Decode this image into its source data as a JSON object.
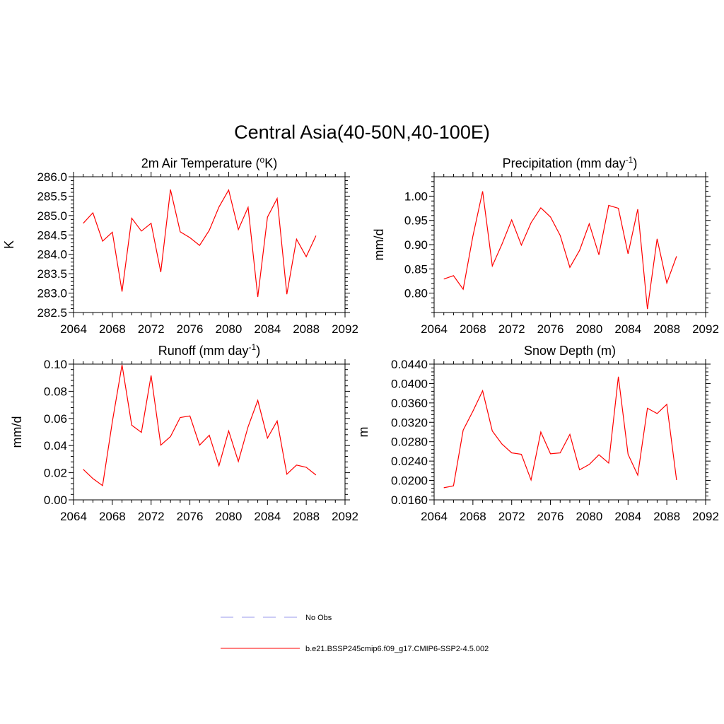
{
  "figure": {
    "title": "Central Asia(40-50N,40-100E)"
  },
  "legend": {
    "entries": [
      {
        "label": "No Obs",
        "color": "#9999ee",
        "style": "dashed"
      },
      {
        "label": "b.e21.BSSP245cmip6.f09_g17.CMIP6-SSP2-4.5.002",
        "color": "#ff0000",
        "style": "solid"
      }
    ]
  },
  "chart_data": [
    {
      "type": "line",
      "title_main": "2m Air Temperature (",
      "title_sup_prefix": "o",
      "title_rest": "K)",
      "ylabel": "K",
      "xlim": [
        2064,
        2092
      ],
      "ylim": [
        282.5,
        286.0
      ],
      "xticks": [
        2064,
        2068,
        2072,
        2076,
        2080,
        2084,
        2088,
        2092
      ],
      "yticks": [
        "282.5",
        "283.0",
        "283.5",
        "284.0",
        "284.5",
        "285.0",
        "285.5",
        "286.0"
      ],
      "color": "#ff0000",
      "series": [
        {
          "x": [
            2065,
            2066,
            2067,
            2068,
            2069,
            2070,
            2071,
            2072,
            2073,
            2074,
            2075,
            2076,
            2077,
            2078,
            2079,
            2080,
            2081,
            2082,
            2083,
            2084,
            2085,
            2086,
            2087,
            2088,
            2089
          ],
          "y": [
            284.8,
            285.07,
            284.34,
            284.57,
            283.04,
            284.93,
            284.6,
            284.8,
            283.54,
            285.67,
            284.58,
            284.43,
            284.23,
            284.62,
            285.22,
            285.66,
            284.64,
            285.21,
            282.9,
            284.96,
            285.44,
            282.97,
            284.39,
            283.94,
            284.48
          ]
        }
      ]
    },
    {
      "type": "line",
      "title_main": "Precipitation (mm day",
      "title_sup": "-1",
      "title_rest": ")",
      "ylabel": "mm/d",
      "xlim": [
        2064,
        2092
      ],
      "ylim": [
        0.76,
        1.04
      ],
      "xticks": [
        2064,
        2068,
        2072,
        2076,
        2080,
        2084,
        2088,
        2092
      ],
      "yticks": [
        "0.80",
        "0.85",
        "0.90",
        "0.95",
        "1.00"
      ],
      "color": "#ff0000",
      "series": [
        {
          "x": [
            2065,
            2066,
            2067,
            2068,
            2069,
            2070,
            2071,
            2072,
            2073,
            2074,
            2075,
            2076,
            2077,
            2078,
            2079,
            2080,
            2081,
            2082,
            2083,
            2084,
            2085,
            2086,
            2087,
            2088,
            2089
          ],
          "y": [
            0.829,
            0.836,
            0.808,
            0.918,
            1.01,
            0.856,
            0.901,
            0.951,
            0.899,
            0.945,
            0.976,
            0.957,
            0.919,
            0.853,
            0.888,
            0.943,
            0.879,
            0.981,
            0.975,
            0.881,
            0.973,
            0.767,
            0.912,
            0.821,
            0.876
          ]
        }
      ]
    },
    {
      "type": "line",
      "title_main": "Runoff (mm day",
      "title_sup": "-1",
      "title_rest": ")",
      "ylabel": "mm/d",
      "xlim": [
        2064,
        2092
      ],
      "ylim": [
        0.0,
        0.1
      ],
      "xticks": [
        2064,
        2068,
        2072,
        2076,
        2080,
        2084,
        2088,
        2092
      ],
      "yticks": [
        "0.00",
        "0.02",
        "0.04",
        "0.06",
        "0.08",
        "0.10"
      ],
      "color": "#ff0000",
      "series": [
        {
          "x": [
            2065,
            2066,
            2067,
            2068,
            2069,
            2070,
            2071,
            2072,
            2073,
            2074,
            2075,
            2076,
            2077,
            2078,
            2079,
            2080,
            2081,
            2082,
            2083,
            2084,
            2085,
            2086,
            2087,
            2088,
            2089
          ],
          "y": [
            0.0225,
            0.0157,
            0.0105,
            0.0576,
            0.0995,
            0.055,
            0.0497,
            0.0916,
            0.0403,
            0.0466,
            0.0607,
            0.0618,
            0.0403,
            0.0476,
            0.0251,
            0.0508,
            0.0283,
            0.0539,
            0.0733,
            0.0455,
            0.0581,
            0.0189,
            0.0256,
            0.024,
            0.0183
          ]
        }
      ]
    },
    {
      "type": "line",
      "title_main": "Snow Depth (m)",
      "ylabel": "m",
      "xlim": [
        2064,
        2092
      ],
      "ylim": [
        0.016,
        0.044
      ],
      "xticks": [
        2064,
        2068,
        2072,
        2076,
        2080,
        2084,
        2088,
        2092
      ],
      "yticks": [
        "0.0160",
        "0.0200",
        "0.0240",
        "0.0280",
        "0.0320",
        "0.0360",
        "0.0400",
        "0.0440"
      ],
      "color": "#ff0000",
      "series": [
        {
          "x": [
            2065,
            2066,
            2067,
            2068,
            2069,
            2070,
            2071,
            2072,
            2073,
            2074,
            2075,
            2076,
            2077,
            2078,
            2079,
            2080,
            2081,
            2082,
            2083,
            2084,
            2085,
            2086,
            2087,
            2088,
            2089
          ],
          "y": [
            0.0185,
            0.0189,
            0.0304,
            0.0343,
            0.0385,
            0.0302,
            0.0275,
            0.0257,
            0.0254,
            0.0201,
            0.03,
            0.0255,
            0.0257,
            0.0295,
            0.0222,
            0.0233,
            0.0253,
            0.0236,
            0.0414,
            0.0254,
            0.0211,
            0.0349,
            0.0338,
            0.0357,
            0.0201
          ]
        }
      ]
    }
  ]
}
